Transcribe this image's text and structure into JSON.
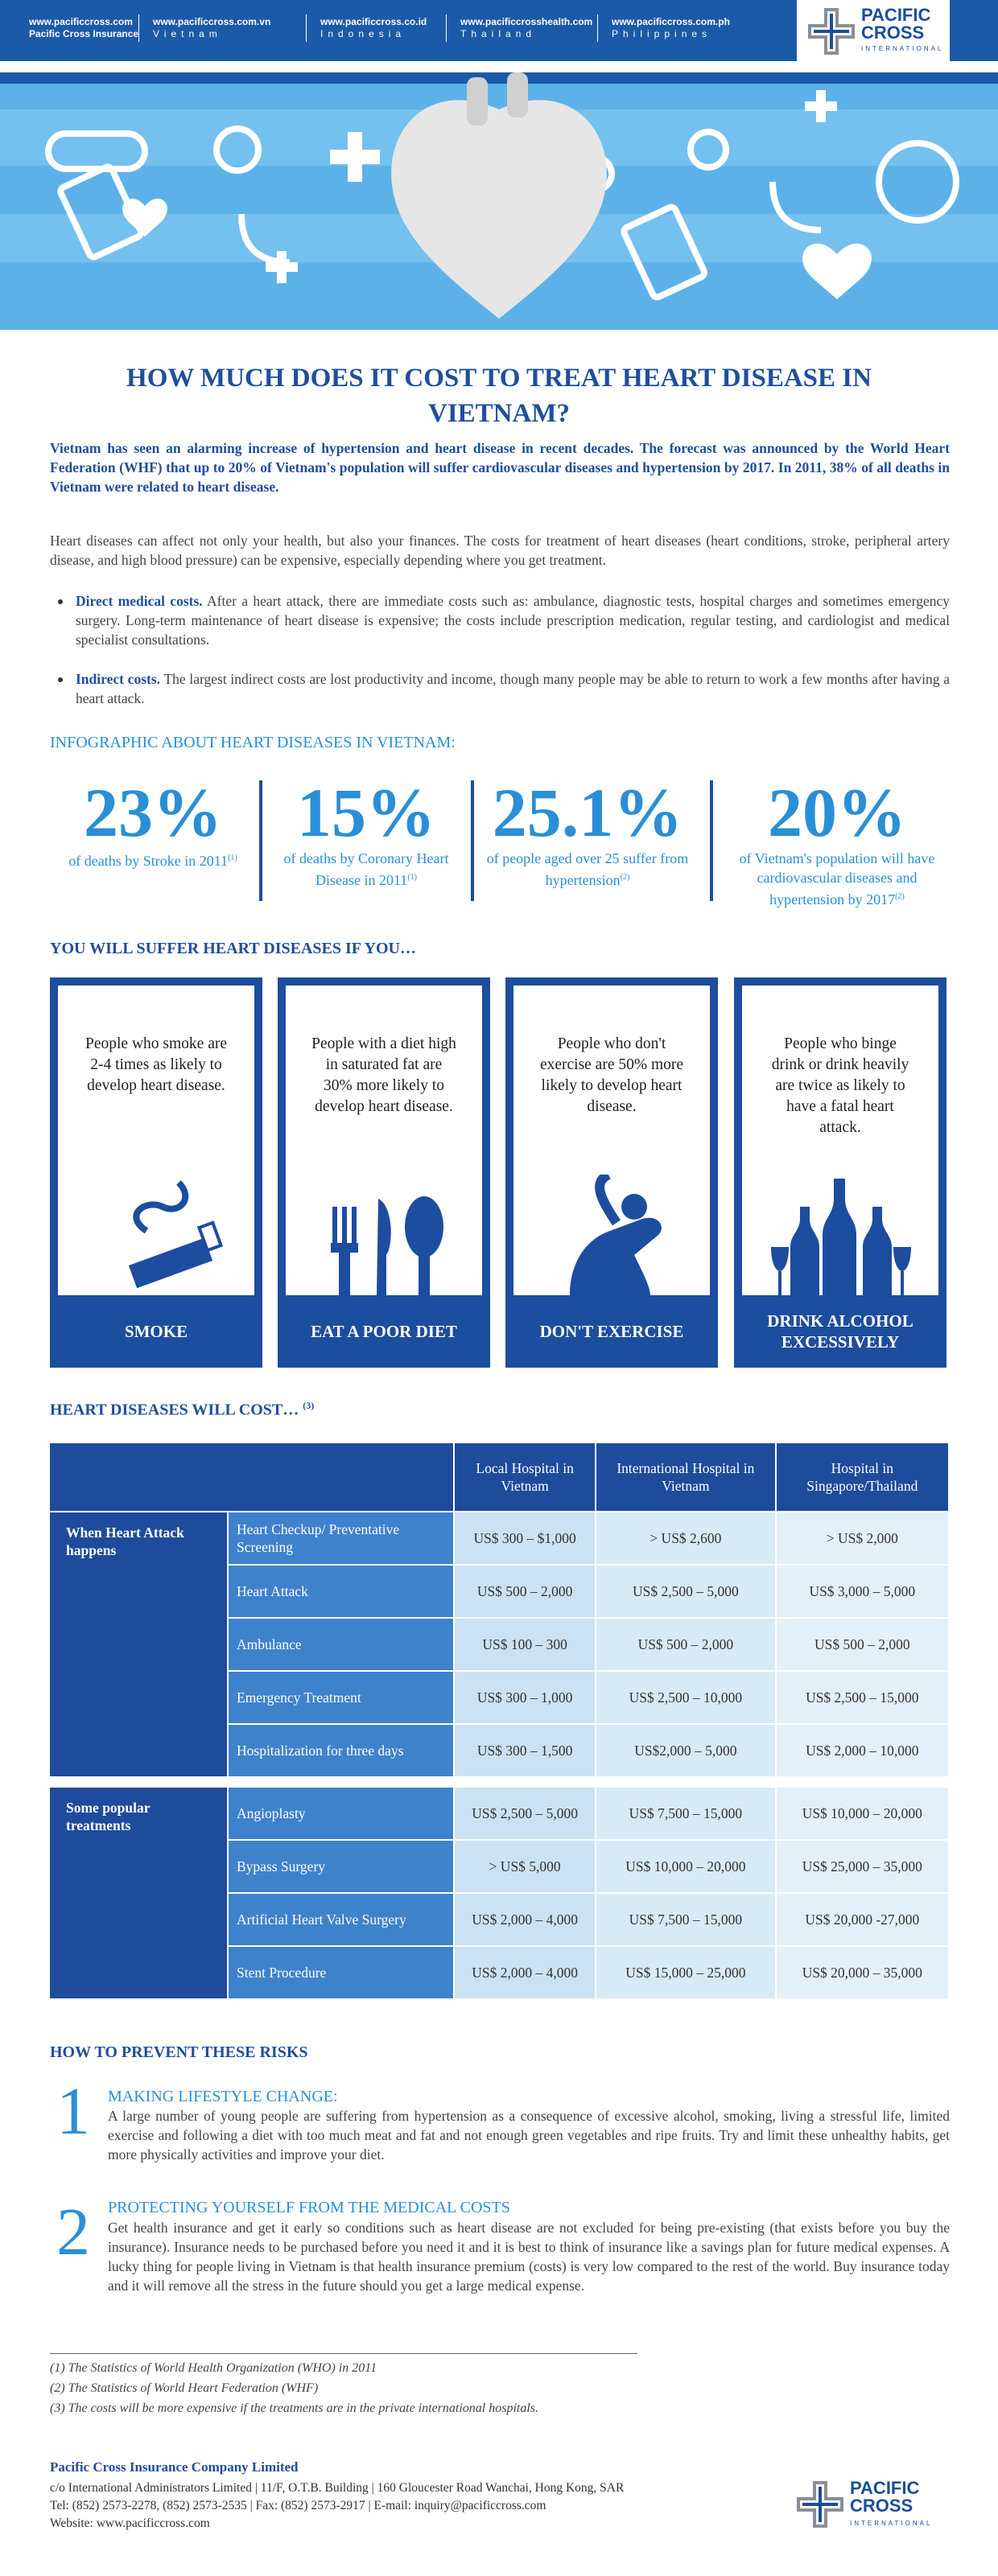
{
  "header": {
    "links": [
      {
        "site": "www.pacificcross.com",
        "sub": "Pacific Cross Insurance"
      },
      {
        "site": "www.pacificcross.com.vn",
        "sub": "Vietnam"
      },
      {
        "site": "www.pacificcross.co.id",
        "sub": "Indonesia"
      },
      {
        "site": "www.pacificcrosshealth.com",
        "sub": "Thailand"
      },
      {
        "site": "www.pacificcross.com.ph",
        "sub": "Philippines"
      }
    ],
    "logo": "PACIFIC CROSS",
    "logo_sub": "INTERNATIONAL",
    "url": "www.pacificcrossinternational.com"
  },
  "article": {
    "title": "HOW MUCH DOES IT COST TO TREAT HEART DISEASE IN VIETNAM?",
    "intro": "Vietnam has seen an alarming increase of hypertension and heart disease in recent decades. The forecast was announced by the World Heart Federation (WHF) that up to 20% of Vietnam's population will suffer cardiovascular diseases and hypertension by 2017. In 2011, 38% of all deaths in Vietnam were related to heart disease.",
    "paragraph": "Heart diseases can affect not only your health, but also your finances. The costs for treatment of heart diseases (heart conditions, stroke, peripheral artery disease, and high blood pressure) can be expensive, especially depending where you get treatment.",
    "bullets": [
      {
        "term": "Direct medical costs.",
        "text": "After a heart attack, there are immediate costs such as: ambulance, diagnostic tests, hospital charges and sometimes emergency surgery. Long-term maintenance of heart disease is expensive; the costs include prescription medication, regular testing, and cardiologist and medical specialist consultations."
      },
      {
        "term": "Indirect costs.",
        "text": "The largest indirect costs are lost productivity and income, though many people may be able to return to work a few months after having a heart attack."
      }
    ]
  },
  "stats": {
    "heading": "INFOGRAPHIC ABOUT HEART DISEASES IN VIETNAM:",
    "items": [
      {
        "value": "23%",
        "text": "of deaths by Stroke in 2011",
        "ref": "(1)"
      },
      {
        "value": "15%",
        "text": "of deaths by Coronary Heart Disease in 2011",
        "ref": "(1)"
      },
      {
        "value": "25.1%",
        "text": "of people aged over 25 suffer from hypertension",
        "ref": "(2)"
      },
      {
        "value": "20%",
        "text": "of Vietnam's population will have cardiovascular diseases and hypertension by 2017",
        "ref": "(2)"
      }
    ]
  },
  "risks": {
    "heading": "YOU WILL SUFFER HEART DISEASES IF YOU…",
    "items": [
      {
        "text": "People who smoke are 2-4 times as likely to develop heart disease.",
        "label": "SMOKE"
      },
      {
        "text": "People with a diet high in saturated fat are 30% more likely to develop heart disease.",
        "label": "EAT A POOR DIET"
      },
      {
        "text": "People who don't exercise are 50% more likely to develop heart disease.",
        "label": "DON'T EXERCISE"
      },
      {
        "text": "People who binge drink or drink heavily are twice as likely to have a fatal heart attack.",
        "label": "DRINK ALCOHOL EXCESSIVELY"
      }
    ]
  },
  "table": {
    "heading": "HEART DISEASES WILL COST…",
    "ref": "(3)",
    "columns": [
      "Local Hospital in Vietnam",
      "International Hospital in Vietnam",
      "Hospital in Singapore/Thailand"
    ],
    "groups": [
      {
        "name": "When Heart Attack happens",
        "rows": [
          [
            "Heart Checkup/ Preventative Screening",
            "US$ 300 – $1,000",
            "> US$ 2,600",
            "> US$ 2,000"
          ],
          [
            "Heart Attack",
            "US$ 500 – 2,000",
            "US$ 2,500 – 5,000",
            "US$ 3,000 – 5,000"
          ],
          [
            "Ambulance",
            "US$ 100 – 300",
            "US$ 500 – 2,000",
            "US$ 500 – 2,000"
          ],
          [
            "Emergency Treatment",
            "US$ 300 – 1,000",
            "US$ 2,500 – 10,000",
            "US$ 2,500 – 15,000"
          ],
          [
            "Hospitalization for three days",
            "US$ 300 – 1,500",
            "US$2,000 – 5,000",
            "US$ 2,000 – 10,000"
          ]
        ]
      },
      {
        "name": "Some popular treatments",
        "rows": [
          [
            "Angioplasty",
            "US$ 2,500 – 5,000",
            "US$ 7,500 – 15,000",
            "US$ 10,000 – 20,000"
          ],
          [
            "Bypass Surgery",
            "> US$ 5,000",
            "US$ 10,000 – 20,000",
            "US$ 25,000 – 35,000"
          ],
          [
            "Artificial Heart Valve Surgery",
            "US$ 2,000 – 4,000",
            "US$ 7,500 – 15,000",
            "US$ 20,000 -27,000"
          ],
          [
            "Stent Procedure",
            "US$ 2,000 – 4,000",
            "US$ 15,000 – 25,000",
            "US$ 20,000 – 35,000"
          ]
        ]
      }
    ]
  },
  "prevent": {
    "heading": "HOW TO PREVENT THESE RISKS",
    "items": [
      {
        "number": "1",
        "title": "MAKING LIFESTYLE CHANGE:",
        "text": "A large number of young people are suffering from hypertension as a consequence of excessive alcohol, smoking, living a stressful life, limited exercise and following a diet with too much meat and fat and not enough green vegetables and ripe fruits. Try and limit these unhealthy habits, get more physically activities and improve your diet."
      },
      {
        "number": "2",
        "title": "PROTECTING YOURSELF FROM THE MEDICAL COSTS",
        "text": "Get health insurance and get it early so conditions such as heart disease are not excluded for being pre-existing (that exists before you buy the insurance). Insurance needs to be purchased before you need it and it is best to think of insurance like a savings plan for future medical expenses. A lucky thing for people living in Vietnam is that health insurance premium (costs) is very low compared to the rest of the world. Buy insurance today and it will remove all the stress in the future should you get a large medical expense."
      }
    ]
  },
  "footnotes": [
    "(1) The Statistics of World Health Organization (WHO) in 2011",
    "(2) The Statistics of World Heart Federation (WHF)",
    "(3) The costs will be more expensive if  the treatments are in the private international hospitals."
  ],
  "footer": {
    "company": "Pacific Cross Insurance Company Limited",
    "lines": [
      "c/o International Administrators Limited  |  11/F, O.T.B. Building  |  160 Gloucester Road Wanchai, Hong Kong, SAR",
      "Tel: (852) 2573-2278, (852) 2573-2535  |  Fax: (852) 2573-2917  |  E-mail: inquiry@pacificcross.com",
      "Website: www.pacificcross.com"
    ],
    "logo": "PACIFIC CROSS",
    "logo_sub": "INTERNATIONAL"
  }
}
